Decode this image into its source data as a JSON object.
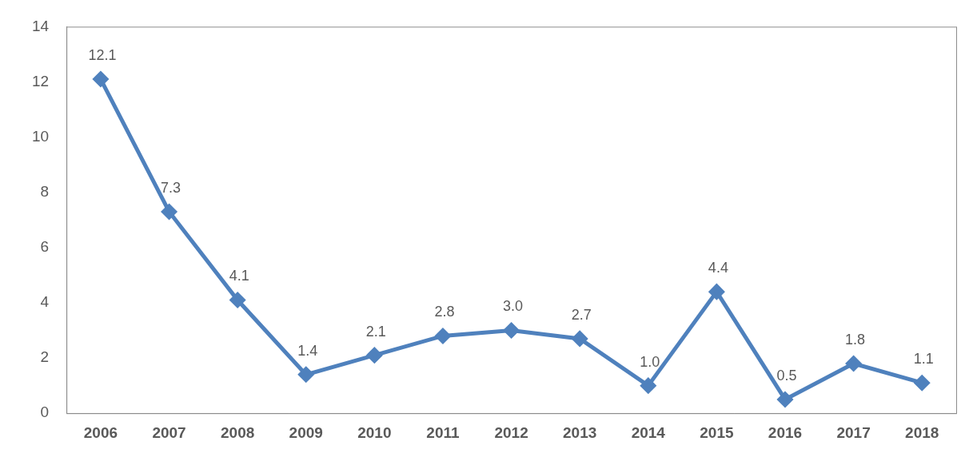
{
  "chart_data": {
    "type": "line",
    "categories": [
      "2006",
      "2007",
      "2008",
      "2009",
      "2010",
      "2011",
      "2012",
      "2013",
      "2014",
      "2015",
      "2016",
      "2017",
      "2018"
    ],
    "values": [
      12.1,
      7.3,
      4.1,
      1.4,
      2.1,
      2.8,
      3.0,
      2.7,
      1.0,
      4.4,
      0.5,
      1.8,
      1.1
    ],
    "value_labels": [
      "12.1",
      "7.3",
      "4.1",
      "1.4",
      "2.1",
      "2.8",
      "3.0",
      "2.7",
      "1.0",
      "4.4",
      "0.5",
      "1.8",
      "1.1"
    ],
    "color": "#4f81bd",
    "ylim": [
      0,
      14
    ],
    "yticks": [
      0,
      2,
      4,
      6,
      8,
      10,
      12,
      14
    ],
    "grid": false,
    "data_labels": true,
    "marker": "diamond",
    "line_style": "solid"
  }
}
